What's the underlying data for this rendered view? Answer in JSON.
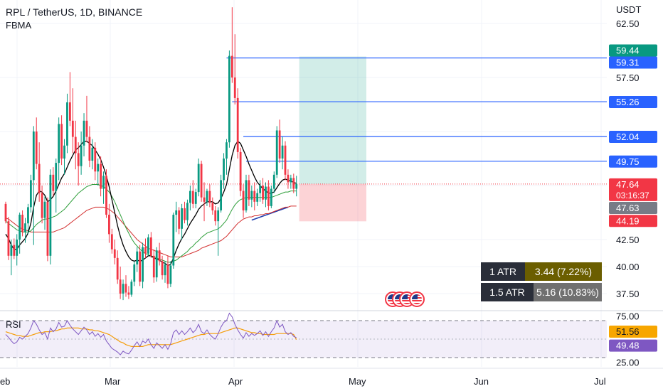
{
  "header": {
    "title": "RPL / TetherUS, 1D, BINANCE",
    "indicator": "FBMA"
  },
  "currency": "USDT",
  "chart_data": {
    "type": "candlestick",
    "symbol": "RPL / TetherUS",
    "timeframe": "1D",
    "exchange": "BINANCE",
    "y_axis": {
      "ylim": [
        36.9,
        64.0
      ],
      "ticks": [
        "62.50",
        "57.50",
        "42.50",
        "40.00",
        "37.50"
      ]
    },
    "x_axis": {
      "ticks": [
        "Feb",
        "Mar",
        "Apr",
        "May",
        "Jun",
        "Jul"
      ]
    },
    "candles": [
      [
        45.8,
        46.0,
        44.0,
        44.2
      ],
      [
        44.2,
        44.6,
        40.6,
        41.0
      ],
      [
        41.0,
        42.5,
        39.2,
        42.0
      ],
      [
        42.0,
        42.6,
        40.7,
        41.0
      ],
      [
        41.0,
        43.0,
        40.1,
        42.5
      ],
      [
        42.5,
        45.0,
        41.2,
        44.8
      ],
      [
        44.8,
        45.2,
        42.8,
        43.2
      ],
      [
        43.2,
        44.5,
        42.2,
        44.0
      ],
      [
        44.0,
        45.8,
        43.0,
        45.5
      ],
      [
        45.5,
        48.5,
        45.0,
        48.0
      ],
      [
        48.0,
        53.0,
        42.0,
        52.5
      ],
      [
        52.5,
        53.8,
        49.0,
        49.5
      ],
      [
        49.5,
        51.5,
        46.0,
        46.8
      ],
      [
        46.8,
        47.5,
        44.0,
        44.5
      ],
      [
        44.5,
        46.5,
        43.4,
        46.0
      ],
      [
        46.0,
        46.4,
        40.5,
        41.0
      ],
      [
        41.0,
        49.0,
        40.2,
        48.5
      ],
      [
        48.5,
        49.2,
        46.5,
        47.0
      ],
      [
        47.0,
        50.0,
        45.0,
        49.6
      ],
      [
        49.6,
        53.8,
        48.0,
        53.2
      ],
      [
        53.2,
        54.0,
        49.4,
        50.0
      ],
      [
        50.0,
        51.8,
        48.5,
        51.2
      ],
      [
        51.2,
        56.0,
        50.5,
        55.2
      ],
      [
        55.2,
        58.0,
        53.0,
        53.5
      ],
      [
        53.5,
        56.5,
        50.5,
        52.0
      ],
      [
        52.0,
        53.5,
        49.0,
        50.5
      ],
      [
        50.5,
        51.5,
        47.5,
        49.3
      ],
      [
        49.3,
        52.5,
        48.5,
        51.2
      ],
      [
        51.2,
        54.2,
        50.2,
        53.5
      ],
      [
        53.5,
        55.8,
        51.5,
        52.0
      ],
      [
        52.0,
        53.0,
        49.2,
        49.8
      ],
      [
        49.8,
        51.8,
        49.0,
        51.0
      ],
      [
        51.0,
        51.5,
        48.0,
        48.8
      ],
      [
        48.8,
        50.0,
        47.5,
        49.5
      ],
      [
        49.5,
        50.2,
        46.5,
        47.2
      ],
      [
        47.2,
        48.8,
        45.8,
        48.4
      ],
      [
        48.4,
        49.0,
        44.5,
        44.8
      ],
      [
        44.8,
        45.8,
        42.2,
        43.0
      ],
      [
        43.0,
        43.5,
        41.2,
        41.6
      ],
      [
        41.6,
        42.5,
        40.2,
        40.8
      ],
      [
        40.8,
        41.5,
        38.4,
        38.8
      ],
      [
        38.8,
        40.0,
        37.0,
        37.5
      ],
      [
        37.5,
        38.8,
        36.9,
        38.4
      ],
      [
        38.4,
        39.2,
        37.2,
        37.6
      ],
      [
        37.6,
        38.2,
        37.0,
        37.4
      ],
      [
        37.4,
        38.8,
        37.2,
        38.6
      ],
      [
        38.6,
        40.5,
        38.2,
        40.2
      ],
      [
        40.2,
        41.8,
        39.5,
        41.4
      ],
      [
        41.4,
        42.0,
        38.2,
        38.6
      ],
      [
        38.6,
        42.2,
        38.0,
        41.8
      ],
      [
        41.8,
        42.6,
        40.8,
        41.2
      ],
      [
        41.2,
        43.0,
        41.0,
        42.7
      ],
      [
        42.7,
        43.2,
        40.8,
        41.0
      ],
      [
        41.0,
        41.6,
        38.5,
        39.0
      ],
      [
        39.0,
        41.8,
        38.6,
        41.5
      ],
      [
        41.5,
        42.2,
        40.1,
        40.5
      ],
      [
        40.5,
        41.0,
        38.8,
        39.2
      ],
      [
        39.2,
        40.5,
        38.5,
        40.2
      ],
      [
        40.2,
        41.0,
        38.0,
        38.4
      ],
      [
        38.4,
        40.5,
        38.1,
        40.1
      ],
      [
        40.1,
        45.0,
        39.8,
        44.8
      ],
      [
        44.8,
        46.0,
        43.2,
        45.2
      ],
      [
        45.2,
        45.5,
        43.0,
        43.5
      ],
      [
        43.5,
        45.8,
        42.5,
        45.4
      ],
      [
        45.4,
        46.0,
        44.0,
        44.3
      ],
      [
        44.3,
        46.2,
        43.8,
        45.9
      ],
      [
        45.9,
        47.5,
        45.2,
        47.0
      ],
      [
        47.0,
        48.0,
        45.4,
        45.8
      ],
      [
        45.8,
        47.2,
        45.4,
        46.9
      ],
      [
        46.9,
        50.0,
        46.5,
        49.5
      ],
      [
        49.5,
        49.8,
        46.0,
        46.4
      ],
      [
        46.4,
        47.8,
        44.2,
        46.0
      ],
      [
        46.0,
        47.2,
        45.6,
        47.0
      ],
      [
        47.0,
        47.6,
        45.5,
        45.9
      ],
      [
        45.9,
        46.4,
        44.8,
        45.2
      ],
      [
        45.2,
        45.6,
        43.8,
        44.2
      ],
      [
        44.2,
        45.5,
        41.0,
        45.2
      ],
      [
        45.2,
        48.5,
        45.0,
        48.0
      ],
      [
        48.0,
        50.5,
        47.2,
        50.0
      ],
      [
        50.0,
        51.8,
        48.5,
        51.5
      ],
      [
        51.5,
        60.0,
        51.0,
        59.5
      ],
      [
        59.5,
        64.0,
        57.0,
        57.5
      ],
      [
        57.5,
        61.5,
        55.0,
        55.6
      ],
      [
        55.6,
        56.5,
        50.0,
        50.6
      ],
      [
        50.6,
        51.0,
        46.5,
        47.0
      ],
      [
        47.0,
        47.6,
        44.5,
        45.2
      ],
      [
        45.2,
        48.5,
        45.0,
        48.0
      ],
      [
        48.0,
        48.5,
        45.6,
        46.2
      ],
      [
        46.2,
        47.5,
        45.5,
        47.0
      ],
      [
        47.0,
        47.8,
        45.2,
        46.0
      ],
      [
        46.0,
        47.2,
        45.6,
        46.8
      ],
      [
        46.8,
        48.0,
        46.0,
        47.5
      ],
      [
        47.5,
        48.2,
        45.8,
        46.2
      ],
      [
        46.2,
        47.8,
        45.5,
        47.4
      ],
      [
        47.4,
        48.0,
        45.2,
        45.6
      ],
      [
        45.6,
        47.5,
        45.4,
        47.2
      ],
      [
        47.2,
        48.8,
        46.8,
        48.5
      ],
      [
        48.5,
        53.0,
        48.2,
        52.6
      ],
      [
        52.6,
        53.6,
        49.6,
        50.0
      ],
      [
        50.0,
        52.0,
        49.0,
        51.2
      ],
      [
        51.2,
        51.6,
        48.0,
        48.5
      ],
      [
        48.5,
        49.0,
        47.2,
        47.8
      ],
      [
        47.8,
        48.5,
        47.2,
        48.2
      ],
      [
        48.2,
        48.6,
        46.8,
        47.2
      ],
      [
        47.2,
        48.4,
        46.5,
        47.64
      ]
    ],
    "fbma_fast": [
      43.0,
      42.6,
      42.0,
      41.6,
      41.6,
      42.0,
      42.3,
      42.6,
      43.1,
      44.0,
      45.5,
      46.6,
      47.0,
      46.9,
      46.6,
      46.0,
      46.2,
      46.5,
      47.0,
      47.6,
      48.2,
      48.6,
      49.2,
      49.8,
      50.3,
      50.8,
      51.0,
      51.3,
      51.6,
      51.6,
      51.4,
      51.2,
      50.8,
      50.4,
      49.9,
      49.2,
      48.4,
      47.4,
      46.2,
      45.0,
      43.8,
      42.8,
      42.0,
      41.4,
      40.9,
      40.6,
      40.5,
      40.6,
      40.5,
      40.6,
      40.8,
      41.0,
      41.0,
      40.8,
      40.7,
      40.6,
      40.4,
      40.3,
      40.1,
      40.2,
      40.8,
      41.5,
      42.1,
      42.6,
      43.0,
      43.5,
      44.0,
      44.4,
      44.8,
      45.3,
      45.6,
      45.8,
      46.0,
      46.0,
      46.0,
      45.8,
      45.9,
      46.3,
      46.9,
      47.6,
      49.0,
      50.3,
      51.2,
      51.6,
      51.4,
      50.8,
      50.2,
      49.5,
      48.9,
      48.3,
      47.8,
      47.5,
      47.2,
      47.0,
      46.8,
      46.8,
      46.9,
      47.3,
      47.7,
      48.0,
      48.1,
      48.0,
      47.9,
      47.8,
      47.7
    ],
    "fbma_slow": [
      44.2,
      44.0,
      43.8,
      43.6,
      43.4,
      43.3,
      43.2,
      43.2,
      43.2,
      43.3,
      43.6,
      43.9,
      44.1,
      44.3,
      44.4,
      44.4,
      44.5,
      44.6,
      44.7,
      44.9,
      45.1,
      45.3,
      45.6,
      45.9,
      46.2,
      46.5,
      46.8,
      47.0,
      47.2,
      47.4,
      47.5,
      47.6,
      47.6,
      47.6,
      47.5,
      47.4,
      47.2,
      46.9,
      46.5,
      46.0,
      45.4,
      44.8,
      44.2,
      43.6,
      43.1,
      42.6,
      42.2,
      41.9,
      41.6,
      41.4,
      41.2,
      41.1,
      41.0,
      40.9,
      40.8,
      40.7,
      40.6,
      40.5,
      40.4,
      40.4,
      40.5,
      40.6,
      40.8,
      41.0,
      41.2,
      41.4,
      41.7,
      41.9,
      42.2,
      42.4,
      42.7,
      42.9,
      43.1,
      43.2,
      43.3,
      43.4,
      43.5,
      43.7,
      44.0,
      44.3,
      44.8,
      45.3,
      45.7,
      46.0,
      46.2,
      46.3,
      46.4,
      46.4,
      46.4,
      46.4,
      46.4,
      46.4,
      46.4,
      46.4,
      46.4,
      46.4,
      46.5,
      46.6,
      46.7,
      46.8,
      46.9,
      46.9,
      47.0,
      47.0,
      47.0
    ],
    "fbma_base": [
      44.5,
      44.4,
      44.2,
      44.0,
      43.8,
      43.6,
      43.5,
      43.4,
      43.3,
      43.2,
      43.2,
      43.2,
      43.2,
      43.2,
      43.2,
      43.2,
      43.2,
      43.2,
      43.3,
      43.4,
      43.5,
      43.6,
      43.8,
      44.0,
      44.2,
      44.4,
      44.6,
      44.8,
      45.0,
      45.2,
      45.3,
      45.4,
      45.5,
      45.5,
      45.5,
      45.5,
      45.4,
      45.3,
      45.1,
      44.9,
      44.6,
      44.3,
      44.0,
      43.7,
      43.4,
      43.1,
      42.8,
      42.5,
      42.3,
      42.1,
      41.9,
      41.7,
      41.6,
      41.5,
      41.4,
      41.3,
      41.2,
      41.1,
      41.0,
      40.9,
      40.9,
      40.9,
      40.9,
      40.9,
      41.0,
      41.1,
      41.2,
      41.3,
      41.4,
      41.5,
      41.7,
      41.8,
      41.9,
      42.0,
      42.1,
      42.2,
      42.3,
      42.4,
      42.6,
      42.8,
      43.1,
      43.4,
      43.7,
      44.0,
      44.2,
      44.4,
      44.5,
      44.6,
      44.6,
      44.7,
      44.7,
      44.8,
      44.8,
      44.9,
      44.9,
      45.0,
      45.1,
      45.2,
      45.3,
      45.4,
      45.5,
      45.5,
      45.6,
      45.6,
      45.6
    ],
    "trend_line": {
      "from_bar": 88,
      "to_bar": 101,
      "values": [
        44.3,
        45.5
      ]
    },
    "horizontal_levels": [
      {
        "value": 59.31,
        "from_bar": 79
      },
      {
        "value": 55.26,
        "from_bar": 81
      },
      {
        "value": 52.04,
        "from_bar": 85
      },
      {
        "value": 49.75,
        "from_bar": 86
      }
    ],
    "long_position": {
      "entry": 47.64,
      "target": 59.44,
      "stop": 44.19,
      "from_bar": 105,
      "to_bar": 129
    },
    "price_labels": [
      {
        "text": "59.44",
        "value": 59.44,
        "bg": "#089981"
      },
      {
        "text": "59.31",
        "value": 59.31,
        "bg": "#2962ff"
      },
      {
        "text": "55.26",
        "value": 55.26,
        "bg": "#2962ff"
      },
      {
        "text": "52.04",
        "value": 52.04,
        "bg": "#2962ff"
      },
      {
        "text": "49.75",
        "value": 49.75,
        "bg": "#2962ff"
      },
      {
        "text": "47.64",
        "value": 47.64,
        "bg": "#f23645",
        "sub": "03:16:37"
      },
      {
        "text": "47.63",
        "value": 47.63,
        "bg": "#787b86"
      },
      {
        "text": "44.19",
        "value": 44.19,
        "bg": "#f23645"
      }
    ],
    "rsi": {
      "label": "RSI",
      "ylim": [
        20,
        80
      ],
      "ticks": [
        "75.00",
        "25.00"
      ],
      "bands": [
        70,
        30
      ],
      "values": [
        55,
        52,
        48,
        45,
        47,
        52,
        50,
        53,
        56,
        62,
        70,
        66,
        60,
        55,
        57,
        50,
        62,
        58,
        61,
        68,
        63,
        64,
        70,
        65,
        61,
        58,
        55,
        59,
        63,
        60,
        55,
        58,
        53,
        56,
        52,
        55,
        48,
        44,
        40,
        38,
        36,
        33,
        37,
        35,
        34,
        38,
        43,
        47,
        42,
        48,
        46,
        50,
        44,
        40,
        46,
        43,
        40,
        44,
        39,
        45,
        57,
        60,
        55,
        59,
        55,
        58,
        62,
        57,
        60,
        66,
        58,
        56,
        60,
        55,
        52,
        50,
        56,
        63,
        68,
        70,
        78,
        74,
        66,
        60,
        55,
        51,
        57,
        53,
        56,
        54,
        56,
        59,
        54,
        58,
        53,
        58,
        62,
        70,
        63,
        66,
        58,
        55,
        57,
        53,
        51.56
      ],
      "ma_values": [
        58,
        57,
        56,
        55,
        54,
        54,
        53,
        53,
        53,
        54,
        55,
        56,
        57,
        57,
        58,
        58,
        58,
        59,
        59,
        60,
        61,
        61,
        62,
        62,
        62,
        62,
        62,
        61,
        61,
        61,
        60,
        60,
        59,
        59,
        58,
        57,
        56,
        55,
        53,
        51,
        49,
        47,
        46,
        44,
        43,
        42,
        42,
        42,
        42,
        42,
        43,
        44,
        44,
        44,
        44,
        44,
        44,
        44,
        44,
        44,
        45,
        46,
        47,
        48,
        49,
        50,
        51,
        52,
        53,
        54,
        55,
        55,
        56,
        56,
        56,
        56,
        56,
        57,
        58,
        59,
        60,
        61,
        62,
        62,
        61,
        60,
        59,
        58,
        57,
        57,
        56,
        56,
        55,
        55,
        55,
        55,
        55,
        56,
        56,
        56,
        56,
        56,
        56,
        55,
        49.48
      ],
      "labels": [
        {
          "text": "51.56",
          "value": 51.56,
          "bg": "#f7a600"
        },
        {
          "text": "49.48",
          "value": 49.48,
          "bg": "#7e57c2"
        }
      ]
    }
  },
  "atr_panel": {
    "rows": [
      {
        "key": "1 ATR",
        "value": "3.44 (7.22%)",
        "bg": "#6b5e00"
      },
      {
        "key": "1.5 ATR",
        "value": "5.16 (10.83%)",
        "bg": "#707070"
      }
    ]
  },
  "colors": {
    "up": "#089981",
    "down": "#f23645",
    "fbma_fast": "#000000",
    "fbma_slow": "#2e9e3a",
    "fbma_base": "#d32f2f",
    "levels": "#2962ff",
    "trend": "#1f3fb0",
    "rsi_line": "#7e57c2",
    "rsi_ma": "#f59e0b",
    "target_zone": "rgba(8,153,129,0.18)",
    "stop_zone": "rgba(242,54,69,0.22)"
  }
}
